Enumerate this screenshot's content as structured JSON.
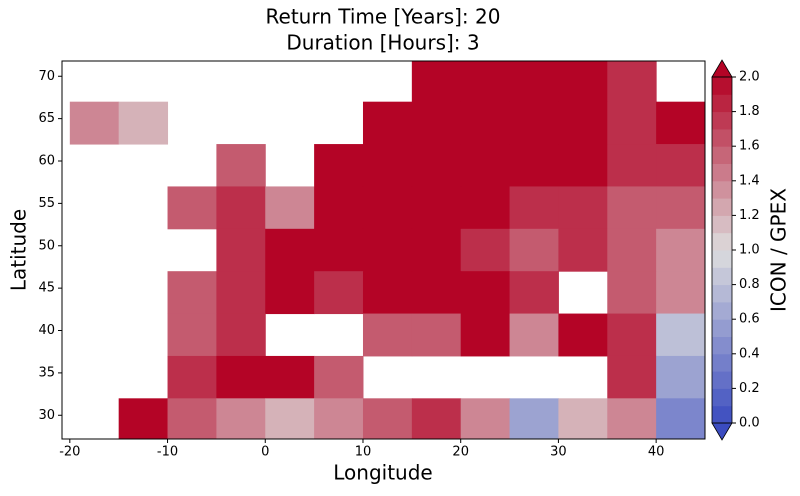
{
  "chart_data": {
    "type": "heatmap",
    "title": "Return Time [Years]: 20",
    "subtitle": "Duration [Hours]: 3",
    "xlabel": "Longitude",
    "ylabel": "Latitude",
    "colorbar_label": "ICON / GPEX",
    "xlim": [
      -20.8,
      45
    ],
    "ylim": [
      27.2,
      71.8
    ],
    "xticks": [
      -20,
      -10,
      0,
      10,
      20,
      30,
      40
    ],
    "yticks": [
      30,
      35,
      40,
      45,
      50,
      55,
      60,
      65,
      70
    ],
    "x_edges": [
      -20,
      -15,
      -10,
      -5,
      0,
      5,
      10,
      15,
      20,
      25,
      30,
      35,
      40,
      45
    ],
    "y_edges": [
      72,
      67,
      62,
      57,
      52,
      47,
      42,
      37,
      32,
      27
    ],
    "z": [
      [
        null,
        null,
        null,
        null,
        null,
        null,
        null,
        2.0,
        2.0,
        2.0,
        2.0,
        1.8,
        null
      ],
      [
        1.4,
        1.2,
        null,
        null,
        null,
        null,
        2.0,
        2.0,
        2.0,
        2.0,
        2.0,
        1.8,
        2.0
      ],
      [
        null,
        null,
        null,
        1.6,
        null,
        2.0,
        2.0,
        2.0,
        2.0,
        2.0,
        2.0,
        1.8,
        1.8
      ],
      [
        null,
        null,
        1.6,
        1.8,
        1.4,
        2.0,
        2.0,
        2.0,
        2.0,
        1.8,
        1.8,
        1.6,
        1.6
      ],
      [
        null,
        null,
        null,
        1.8,
        2.0,
        2.0,
        2.0,
        2.0,
        1.8,
        1.6,
        1.8,
        1.6,
        1.4
      ],
      [
        null,
        null,
        1.6,
        1.8,
        2.0,
        1.8,
        2.0,
        2.0,
        2.0,
        1.8,
        null,
        1.6,
        1.4
      ],
      [
        null,
        null,
        1.6,
        1.8,
        null,
        null,
        1.6,
        1.6,
        2.0,
        1.4,
        2.0,
        1.8,
        0.8
      ],
      [
        null,
        null,
        1.8,
        2.0,
        2.0,
        1.6,
        null,
        null,
        null,
        null,
        null,
        1.8,
        0.6
      ],
      [
        null,
        2.0,
        1.6,
        1.4,
        1.2,
        1.4,
        1.6,
        1.8,
        1.4,
        0.6,
        1.2,
        1.4,
        0.4
      ]
    ],
    "clim": [
      0,
      2
    ],
    "colormap": [
      "#3b4cc0",
      "#dddddd",
      "#b40426"
    ],
    "cticks": [
      {
        "value": 0,
        "label": "0.0"
      },
      {
        "value": 0.2,
        "label": "0.2"
      },
      {
        "value": 0.4,
        "label": "0.4"
      },
      {
        "value": 0.6,
        "label": "0.6"
      },
      {
        "value": 0.8,
        "label": "0.8"
      },
      {
        "value": 1.0,
        "label": "1.0"
      },
      {
        "value": 1.2,
        "label": "1.2"
      },
      {
        "value": 1.4,
        "label": "1.4"
      },
      {
        "value": 1.6,
        "label": "1.6"
      },
      {
        "value": 1.8,
        "label": "1.8"
      },
      {
        "value": 2.0,
        "label": "2.0"
      }
    ]
  }
}
